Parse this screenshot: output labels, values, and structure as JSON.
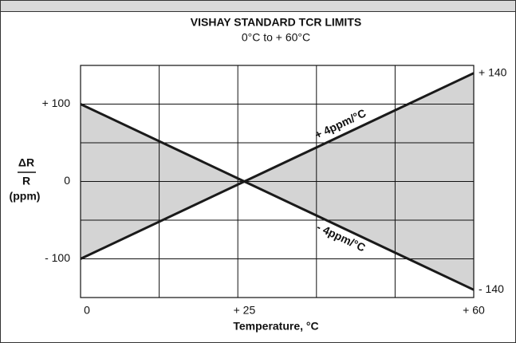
{
  "chart_data": {
    "type": "line",
    "title": "VISHAY STANDARD TCR LIMITS",
    "subtitle": "0°C to + 60°C",
    "x_label": "Temperature, °C",
    "y_label": {
      "numerator": "ΔR",
      "denominator": "R",
      "unit": "(ppm)"
    },
    "x": [
      0,
      25,
      60
    ],
    "xlim": [
      0,
      60
    ],
    "xticks": [
      0,
      {
        "value": 25,
        "label": "+ 25"
      },
      {
        "value": 60,
        "label": "+ 60"
      }
    ],
    "xgrid": [
      12,
      24,
      36,
      48
    ],
    "ylim": [
      -150,
      150
    ],
    "yticks": [
      {
        "value": 100,
        "label": "+ 100"
      },
      0,
      {
        "value": -100,
        "label": "- 100"
      }
    ],
    "ygrid": [
      -100,
      -50,
      0,
      50,
      100
    ],
    "grid": true,
    "fill_between": true,
    "fill_color": "#d4d4d4",
    "series": [
      {
        "name": "+ 4ppm/°C",
        "color": "#1a1a1a",
        "values": [
          -100,
          0,
          140
        ],
        "end_label": "+ 140"
      },
      {
        "name": "- 4ppm/°C",
        "color": "#1a1a1a",
        "values": [
          100,
          0,
          -140
        ],
        "end_label": "- 140"
      }
    ]
  }
}
